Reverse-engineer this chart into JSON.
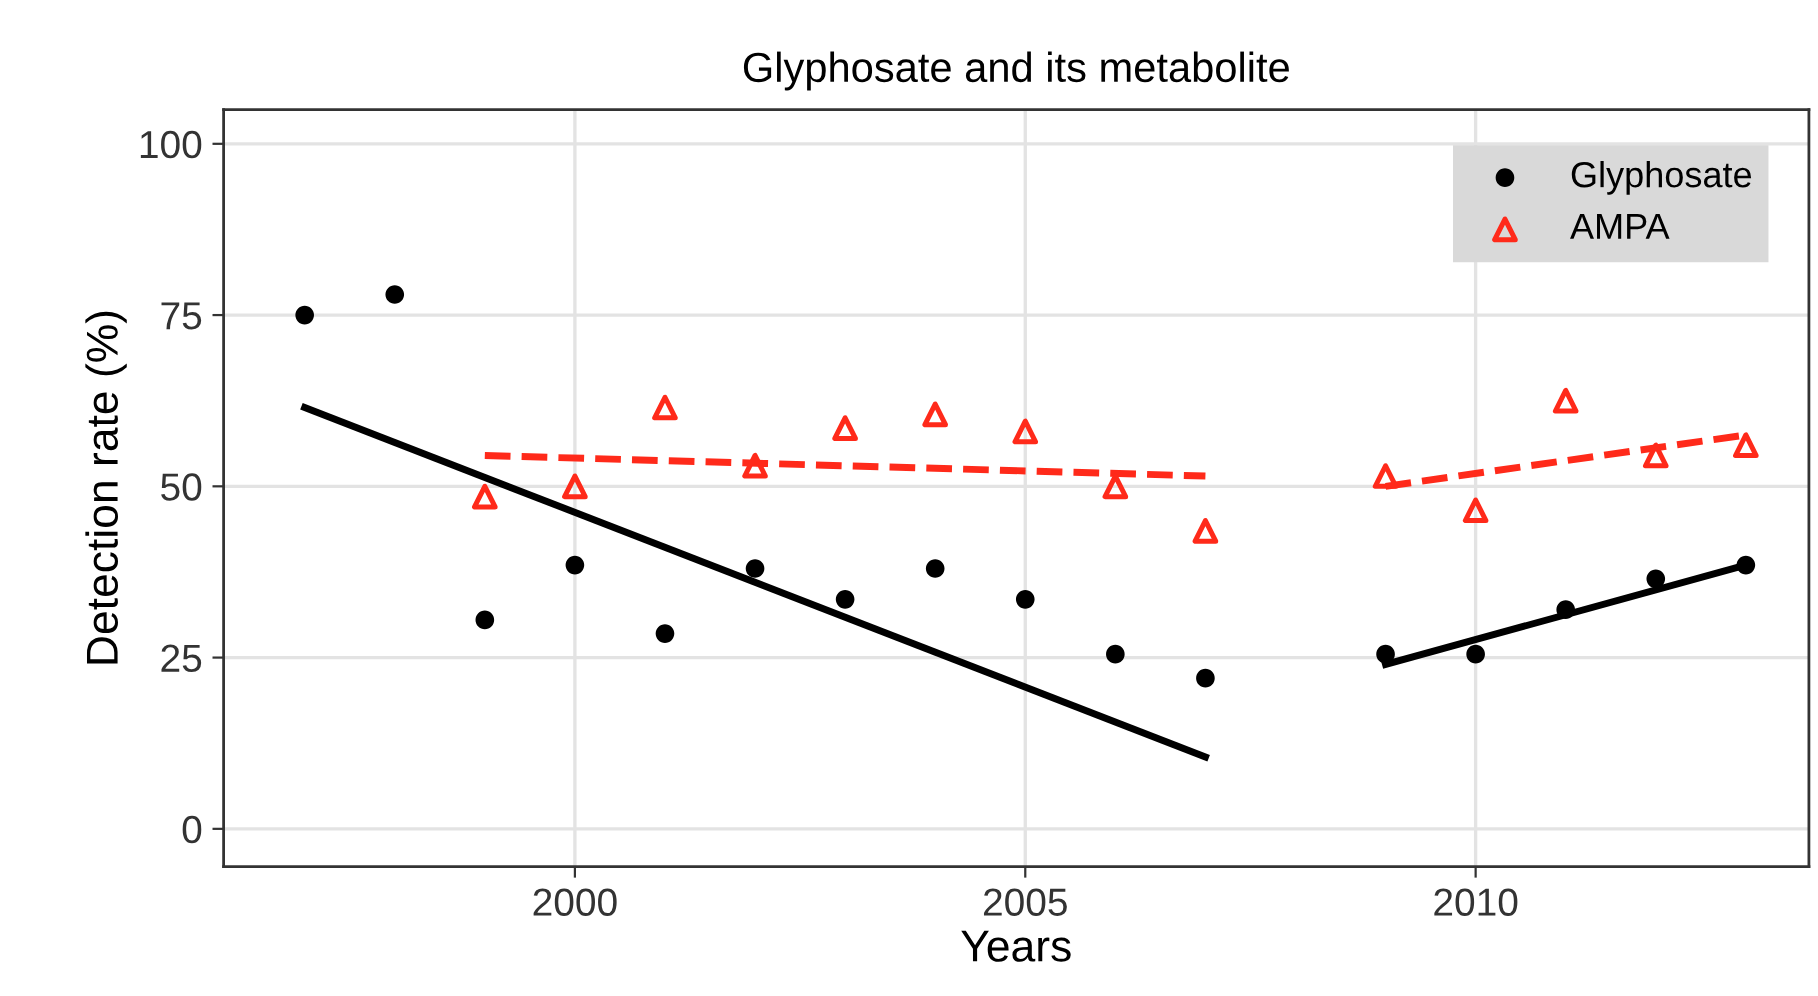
{
  "chart_data": {
    "type": "scatter",
    "title": "Glyphosate and its metabolite",
    "xlabel": "Years",
    "ylabel": "Detection rate (%)",
    "xlim": [
      1996.1,
      2013.7
    ],
    "xticks": [
      2000,
      2005,
      2010
    ],
    "ylim": [
      -5.5,
      105
    ],
    "yticks": [
      0,
      25,
      50,
      75,
      100
    ],
    "grid": true,
    "legend": "top right",
    "series": [
      {
        "name": "Glyphosate",
        "marker": "circle",
        "color": "#000000",
        "x": [
          1997,
          1998,
          1999,
          2000,
          2001,
          2002,
          2003,
          2004,
          2005,
          2006,
          2007,
          2009,
          2010,
          2011,
          2012,
          2013
        ],
        "values": [
          75,
          78,
          30.5,
          38.5,
          28.5,
          38,
          33.5,
          38,
          33.5,
          25.5,
          22,
          25.5,
          25.5,
          32,
          36.5,
          38.5
        ]
      },
      {
        "name": "AMPA",
        "marker": "triangle",
        "color": "#ff2a1a",
        "x": [
          1999,
          2000,
          2001,
          2002,
          2003,
          2004,
          2005,
          2006,
          2007,
          2009,
          2010,
          2011,
          2012,
          2013
        ],
        "values": [
          48.5,
          50,
          61.5,
          53,
          58.5,
          60.5,
          58,
          50,
          43.5,
          51.5,
          46.5,
          62.5,
          54.5,
          56
        ]
      },
      {
        "type": "line",
        "line_style": "solid",
        "color": "#000000",
        "x": [
          1997,
          2007
        ],
        "values": [
          61.5,
          10.5
        ]
      },
      {
        "type": "line",
        "line_style": "solid",
        "color": "#000000",
        "x": [
          2009,
          2013
        ],
        "values": [
          24,
          38.5
        ]
      },
      {
        "type": "line",
        "line_style": "dashed",
        "color": "#ff2a1a",
        "x": [
          1999,
          2007
        ],
        "values": [
          54.5,
          51.5
        ]
      },
      {
        "type": "line",
        "line_style": "dashed",
        "color": "#ff2a1a",
        "x": [
          2009,
          2013
        ],
        "values": [
          50,
          57.5
        ]
      }
    ]
  }
}
